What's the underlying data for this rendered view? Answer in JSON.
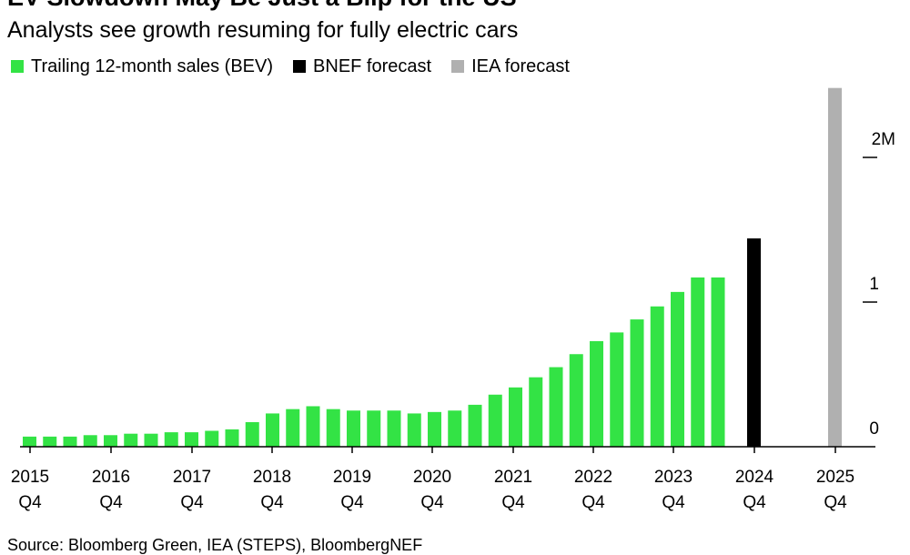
{
  "title": "EV Slowdown May Be Just a Blip for the US",
  "subtitle": "Analysts see growth resuming for fully electric cars",
  "source": "Source: Bloomberg Green, IEA (STEPS), BloombergNEF",
  "legend": [
    {
      "label": "Trailing 12-month sales (BEV)",
      "color": "#33e345"
    },
    {
      "label": "BNEF forecast",
      "color": "#000000"
    },
    {
      "label": "IEA forecast",
      "color": "#b0b0b0"
    }
  ],
  "chart_data": {
    "type": "bar",
    "x_ticks": [
      {
        "year": "2015",
        "quarter": "Q4"
      },
      {
        "year": "2016",
        "quarter": "Q4"
      },
      {
        "year": "2017",
        "quarter": "Q4"
      },
      {
        "year": "2018",
        "quarter": "Q4"
      },
      {
        "year": "2019",
        "quarter": "Q4"
      },
      {
        "year": "2020",
        "quarter": "Q4"
      },
      {
        "year": "2021",
        "quarter": "Q4"
      },
      {
        "year": "2022",
        "quarter": "Q4"
      },
      {
        "year": "2023",
        "quarter": "Q4"
      },
      {
        "year": "2024",
        "quarter": "Q4"
      },
      {
        "year": "2025",
        "quarter": "Q4"
      }
    ],
    "y_ticks": [
      "0",
      "1",
      "2M"
    ],
    "ylim": [
      0,
      2.5
    ],
    "y_units": "million",
    "series": [
      {
        "name": "Trailing 12-month sales (BEV)",
        "color": "#33e345",
        "values": [
          0.07,
          0.07,
          0.07,
          0.08,
          0.08,
          0.09,
          0.09,
          0.1,
          0.1,
          0.11,
          0.12,
          0.17,
          0.23,
          0.26,
          0.28,
          0.26,
          0.25,
          0.25,
          0.25,
          0.23,
          0.24,
          0.25,
          0.29,
          0.36,
          0.41,
          0.48,
          0.55,
          0.64,
          0.73,
          0.79,
          0.88,
          0.97,
          1.07,
          1.17,
          1.17
        ]
      },
      {
        "name": "BNEF forecast",
        "color": "#000000",
        "values": [
          1.44
        ]
      },
      {
        "name": "IEA forecast",
        "color": "#b0b0b0",
        "values": [
          2.48
        ]
      }
    ]
  }
}
